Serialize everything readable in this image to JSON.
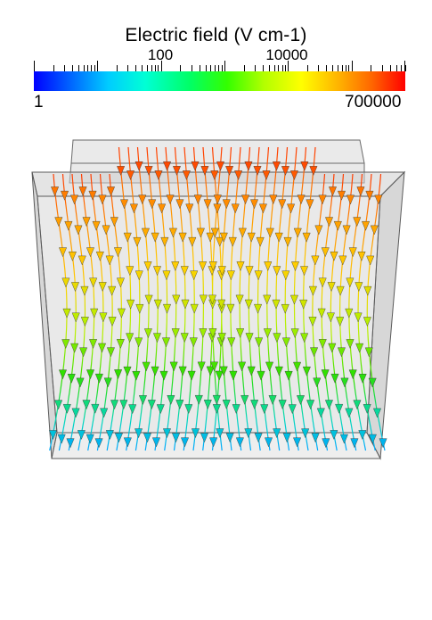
{
  "legend": {
    "title": "Electric field (V cm-1)",
    "min_label": "1",
    "max_label": "700000",
    "major_ticks": [
      "100",
      "10000"
    ],
    "scale": "log",
    "colors": [
      "#0000ff",
      "#00ccff",
      "#00ff66",
      "#b3ff00",
      "#ffff00",
      "#ff6600",
      "#ff0000"
    ]
  },
  "scene": {
    "object": "transparent gray box with field streamlines and arrow glyphs",
    "box_color": "#d4d4d4"
  }
}
